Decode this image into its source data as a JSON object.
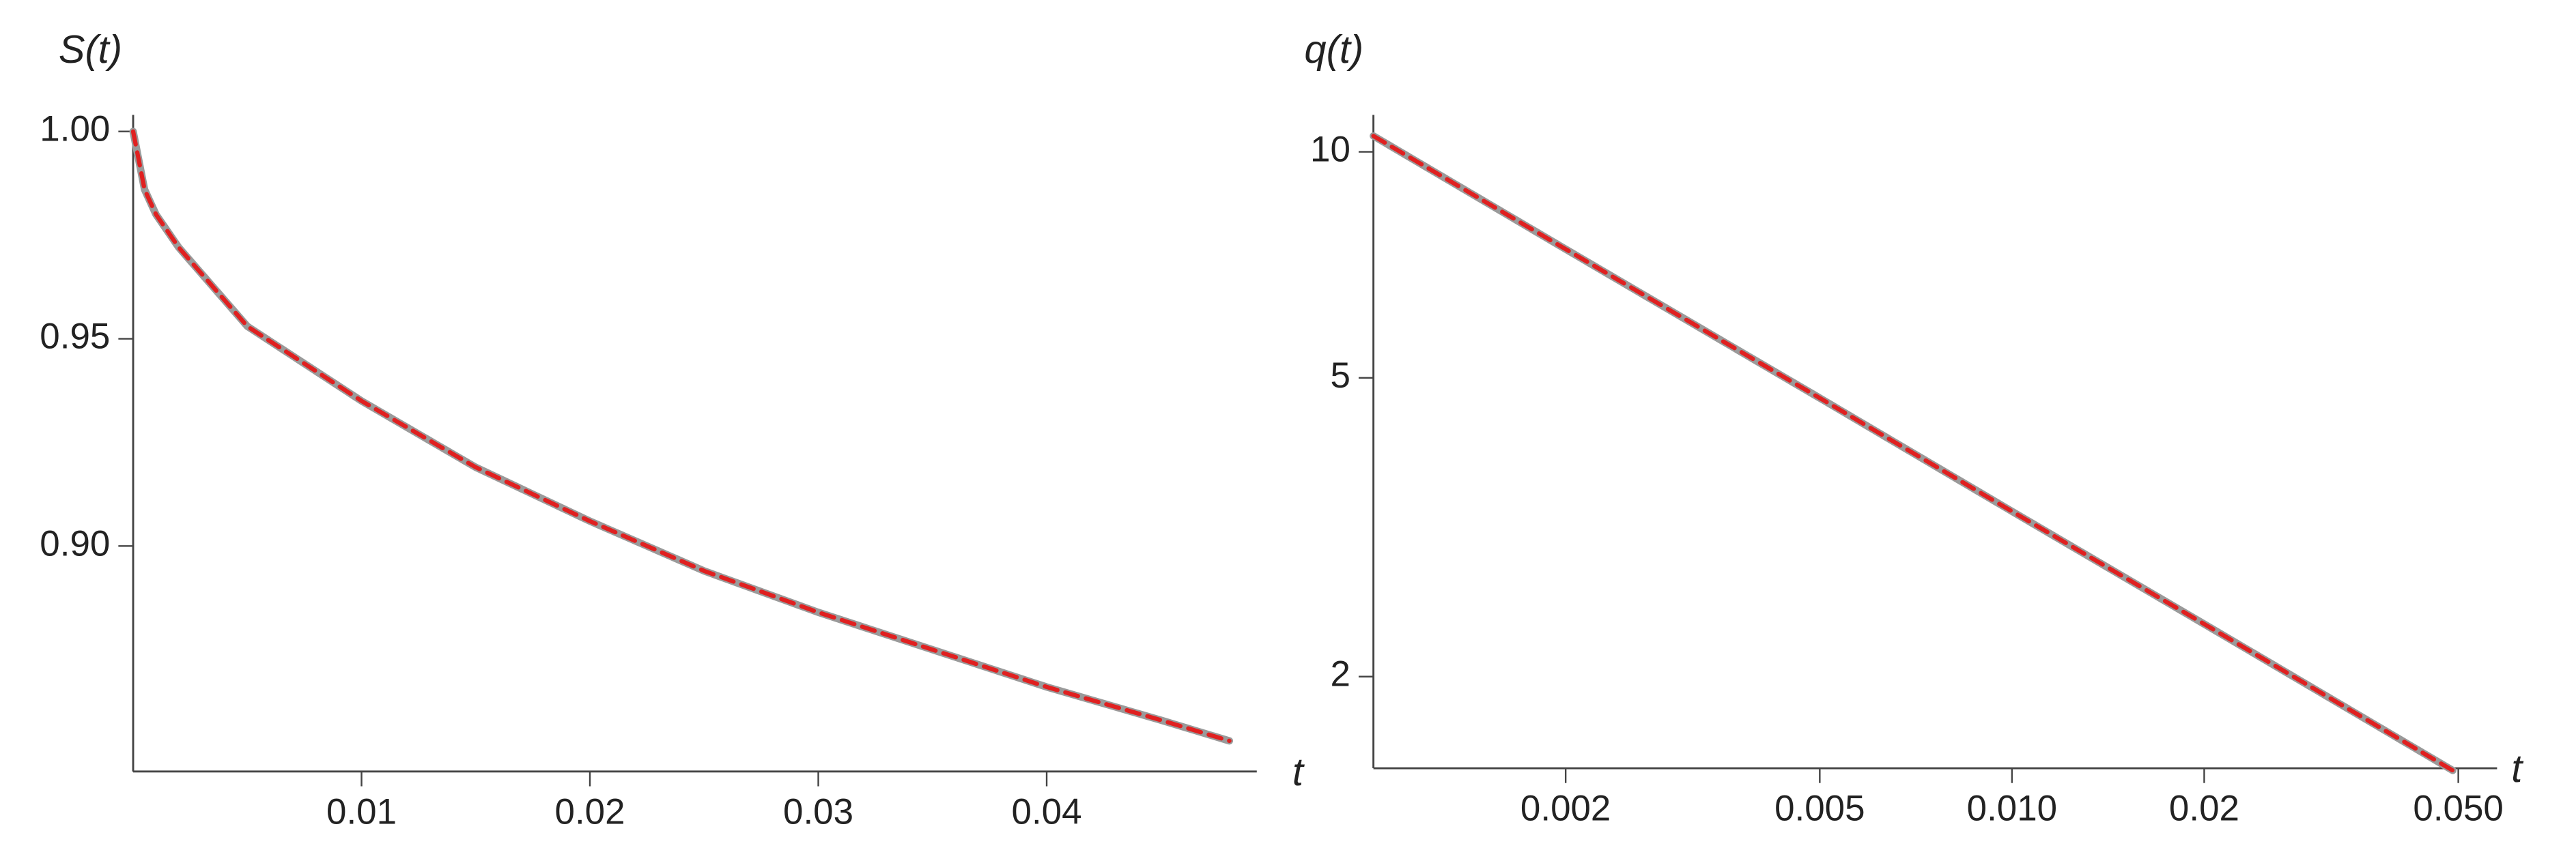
{
  "chart_data": [
    {
      "type": "line",
      "y_label": "S(t)",
      "x_label": "t",
      "x": [
        0,
        0.0005,
        0.001,
        0.002,
        0.005,
        0.01,
        0.015,
        0.02,
        0.025,
        0.03,
        0.035,
        0.04,
        0.045,
        0.048
      ],
      "series": [
        {
          "color": "#9a9a9a",
          "dashed": false,
          "values": [
            1.0,
            0.986,
            0.98,
            0.972,
            0.953,
            0.935,
            0.919,
            0.906,
            0.894,
            0.884,
            0.875,
            0.866,
            0.858,
            0.853
          ]
        },
        {
          "color": "#e02020",
          "dashed": true,
          "values": [
            1.0,
            0.986,
            0.98,
            0.972,
            0.953,
            0.935,
            0.919,
            0.906,
            0.894,
            0.884,
            0.875,
            0.866,
            0.858,
            0.853
          ]
        }
      ],
      "xlim": [
        0,
        0.0492
      ],
      "ylim": [
        0.8456,
        1.004
      ],
      "xticks": [
        0.01,
        0.02,
        0.03,
        0.04
      ],
      "yticks": [
        {
          "value": 0.9,
          "label": "0.90"
        },
        {
          "value": 0.95,
          "label": "0.95"
        },
        {
          "value": 1.0,
          "label": "1.00"
        }
      ],
      "log_x": false,
      "log_y": false
    },
    {
      "type": "line",
      "y_label": "q(t)",
      "x_label": "t",
      "x": [
        0.001,
        0.002,
        0.005,
        0.01,
        0.02,
        0.049
      ],
      "series": [
        {
          "color": "#9a9a9a",
          "dashed": false,
          "values": [
            10.5,
            7.42,
            4.7,
            3.32,
            2.35,
            1.5
          ]
        },
        {
          "color": "#e02020",
          "dashed": true,
          "values": [
            10.5,
            7.42,
            4.7,
            3.32,
            2.35,
            1.5
          ]
        }
      ],
      "xlim": [
        0.001,
        0.0575
      ],
      "ylim": [
        1.51,
        11.2
      ],
      "xticks": [
        0.002,
        0.005,
        {
          "value": 0.01,
          "label": "0.010"
        },
        0.02,
        {
          "value": 0.05,
          "label": "0.050"
        }
      ],
      "yticks": [
        2,
        5,
        10
      ],
      "log_x": true,
      "log_y": true
    }
  ]
}
